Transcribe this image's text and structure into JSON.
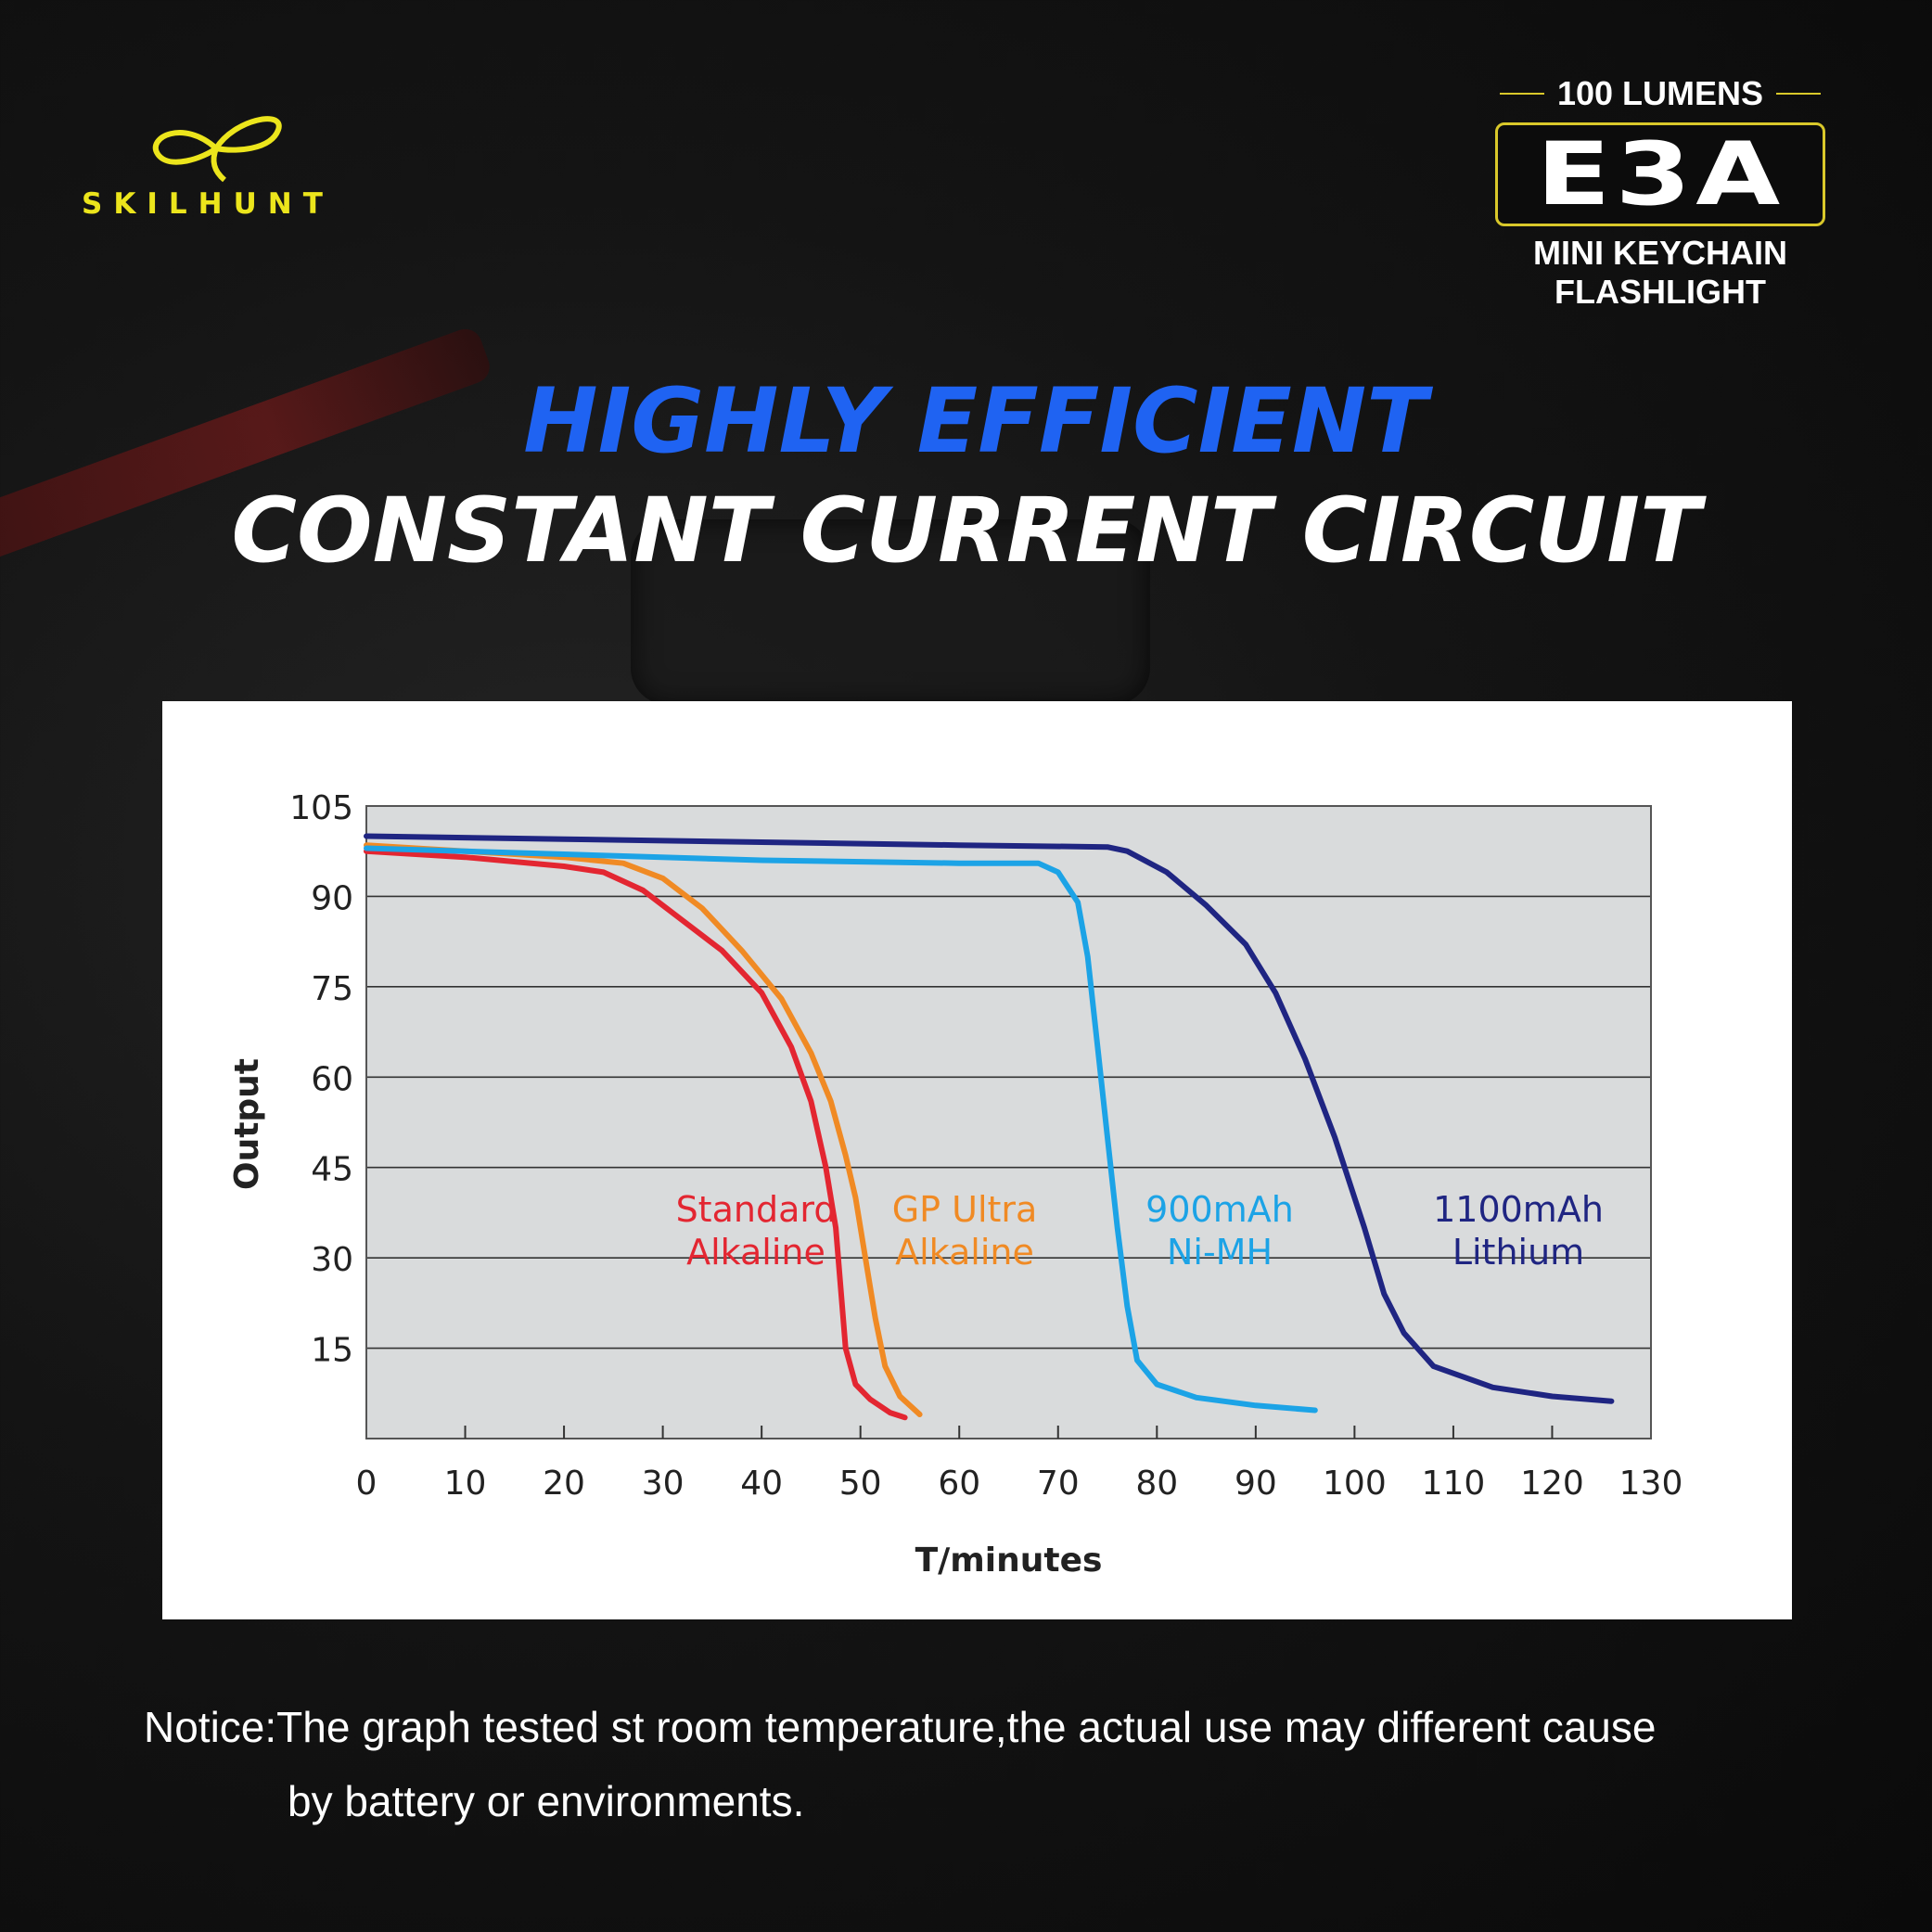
{
  "brand": {
    "name": "SKILHUNT",
    "color": "#ece51c"
  },
  "badge": {
    "lumens": "100 LUMENS",
    "model": "E3A",
    "subtitle_line1": "MINI KEYCHAIN",
    "subtitle_line2": "FLASHLIGHT",
    "accent": "#d9c82a"
  },
  "headline": {
    "line1": "HIGHLY EFFICIENT",
    "line2": "CONSTANT CURRENT CIRCUIT",
    "line1_color": "#1f63f2",
    "line2_color": "#ffffff"
  },
  "chart_data": {
    "type": "line",
    "title": "",
    "xlabel": "T/minutes",
    "ylabel": "Output",
    "xlim": [
      0,
      130
    ],
    "ylim": [
      0,
      105
    ],
    "x_ticks": [
      0,
      10,
      20,
      30,
      40,
      50,
      60,
      70,
      80,
      90,
      100,
      110,
      120,
      130
    ],
    "y_ticks": [
      15,
      30,
      45,
      60,
      75,
      90,
      105
    ],
    "grid": "horizontal",
    "plot_background": "#d9dbdc",
    "series": [
      {
        "name": "Standard Alkaline",
        "label_lines": [
          "Standard",
          "Alkaline"
        ],
        "color": "#e32631",
        "points": [
          [
            0,
            97.5
          ],
          [
            10,
            96.5
          ],
          [
            20,
            95
          ],
          [
            24,
            94
          ],
          [
            28,
            91
          ],
          [
            32,
            86
          ],
          [
            36,
            81
          ],
          [
            40,
            74
          ],
          [
            43,
            65
          ],
          [
            45,
            56
          ],
          [
            46.5,
            45
          ],
          [
            47.5,
            35
          ],
          [
            48,
            25
          ],
          [
            48.5,
            15
          ],
          [
            49.5,
            9
          ],
          [
            51,
            6.5
          ],
          [
            53,
            4.3
          ],
          [
            54.5,
            3.5
          ]
        ]
      },
      {
        "name": "GP Ultra Alkaline",
        "label_lines": [
          "GP Ultra",
          "Alkaline"
        ],
        "color": "#f08a24",
        "points": [
          [
            0,
            98.5
          ],
          [
            10,
            97.5
          ],
          [
            20,
            96.5
          ],
          [
            26,
            95.5
          ],
          [
            30,
            93
          ],
          [
            34,
            88
          ],
          [
            38,
            81
          ],
          [
            42,
            73
          ],
          [
            45,
            64
          ],
          [
            47,
            56
          ],
          [
            48.5,
            47
          ],
          [
            49.5,
            40
          ],
          [
            50.5,
            30
          ],
          [
            51.5,
            20
          ],
          [
            52.5,
            12
          ],
          [
            54,
            7
          ],
          [
            56,
            4
          ]
        ]
      },
      {
        "name": "900mAh Ni-MH",
        "label_lines": [
          "900mAh",
          "Ni-MH"
        ],
        "color": "#1ca3e6",
        "points": [
          [
            0,
            98
          ],
          [
            20,
            97
          ],
          [
            40,
            96
          ],
          [
            60,
            95.5
          ],
          [
            68,
            95.5
          ],
          [
            70,
            94
          ],
          [
            72,
            89
          ],
          [
            73,
            80
          ],
          [
            74,
            65
          ],
          [
            75,
            50
          ],
          [
            76,
            35
          ],
          [
            77,
            22
          ],
          [
            78,
            13
          ],
          [
            80,
            9
          ],
          [
            84,
            6.8
          ],
          [
            90,
            5.5
          ],
          [
            96,
            4.7
          ]
        ]
      },
      {
        "name": "1100mAh Lithium",
        "label_lines": [
          "1100mAh",
          "Lithium"
        ],
        "color": "#1f2582",
        "points": [
          [
            0,
            100
          ],
          [
            20,
            99.5
          ],
          [
            40,
            99
          ],
          [
            60,
            98.5
          ],
          [
            75,
            98.2
          ],
          [
            77,
            97.5
          ],
          [
            81,
            94
          ],
          [
            85,
            88.5
          ],
          [
            89,
            82
          ],
          [
            92,
            74
          ],
          [
            95,
            63
          ],
          [
            98,
            50
          ],
          [
            101,
            35
          ],
          [
            103,
            24
          ],
          [
            105,
            17.5
          ],
          [
            108,
            12
          ],
          [
            114,
            8.5
          ],
          [
            120,
            7
          ],
          [
            126,
            6.2
          ]
        ]
      }
    ]
  },
  "notice": {
    "line1": "Notice:The graph tested st room temperature,the actual use may different cause",
    "line2": "by battery or environments."
  }
}
